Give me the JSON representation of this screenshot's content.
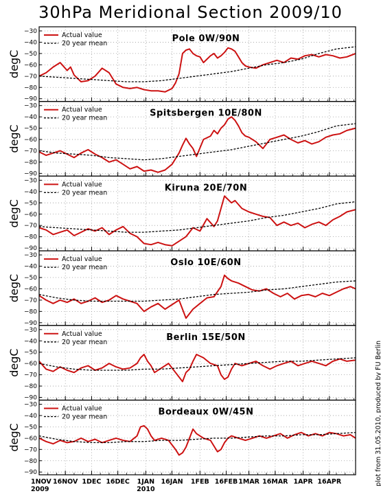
{
  "page_title": "30hPa Meridional Section 2009/10",
  "credit": "plot from 31.05.2010, produced by FU Berlin",
  "legend": {
    "actual": "Actual value",
    "mean": "20 year mean"
  },
  "colors": {
    "actual": "#cc1111",
    "mean": "#000000",
    "grid": "#999999"
  },
  "chart_data": [
    {
      "type": "line",
      "title": "Pole 0W/90N",
      "ylabel": "degC",
      "ylim": [
        -90,
        -30
      ],
      "yticks": [
        -30,
        -40,
        -50,
        -60,
        -70,
        -80,
        -90
      ],
      "x_range_days": [
        0,
        181
      ],
      "x_ticks": [
        {
          "day": 0,
          "label": "1NOV",
          "year": "2009"
        },
        {
          "day": 15,
          "label": "16NOV"
        },
        {
          "day": 30,
          "label": "1DEC"
        },
        {
          "day": 45,
          "label": "16DEC"
        },
        {
          "day": 61,
          "label": "1JAN",
          "year": "2010"
        },
        {
          "day": 76,
          "label": "16JAN"
        },
        {
          "day": 92,
          "label": "1FEB"
        },
        {
          "day": 107,
          "label": "16FEB"
        },
        {
          "day": 120,
          "label": "1MAR"
        },
        {
          "day": 135,
          "label": "16MAR"
        },
        {
          "day": 151,
          "label": "1APR"
        },
        {
          "day": 166,
          "label": "16APR"
        }
      ],
      "grid": true,
      "legend_position": "top-left",
      "series": [
        {
          "name": "Actual value",
          "style": "solid",
          "color": "#cc1111",
          "x": [
            0,
            4,
            8,
            12,
            16,
            18,
            20,
            24,
            28,
            32,
            36,
            40,
            44,
            48,
            52,
            56,
            60,
            64,
            68,
            72,
            76,
            78,
            80,
            82,
            84,
            86,
            88,
            90,
            92,
            94,
            96,
            98,
            100,
            102,
            104,
            106,
            108,
            110,
            112,
            114,
            116,
            118,
            120,
            124,
            128,
            132,
            136,
            140,
            144,
            148,
            152,
            156,
            160,
            164,
            168,
            172,
            176,
            181
          ],
          "y": [
            -70,
            -67,
            -62,
            -58,
            -65,
            -62,
            -69,
            -75,
            -74,
            -70,
            -63,
            -67,
            -77,
            -80,
            -81,
            -80,
            -82,
            -83,
            -83,
            -84,
            -81,
            -76,
            -68,
            -50,
            -47,
            -46,
            -50,
            -52,
            -53,
            -58,
            -55,
            -52,
            -50,
            -54,
            -52,
            -49,
            -45,
            -46,
            -48,
            -53,
            -58,
            -61,
            -62,
            -63,
            -60,
            -58,
            -56,
            -58,
            -54,
            -55,
            -52,
            -51,
            -53,
            -51,
            -52,
            -54,
            -53,
            -50
          ]
        },
        {
          "name": "20 year mean",
          "style": "dashed",
          "color": "#000000",
          "x": [
            0,
            10,
            20,
            30,
            40,
            50,
            60,
            70,
            80,
            90,
            100,
            110,
            120,
            130,
            140,
            150,
            160,
            170,
            181
          ],
          "y": [
            -70,
            -71,
            -72,
            -73,
            -74,
            -75,
            -75,
            -74,
            -72,
            -70,
            -68,
            -66,
            -63,
            -60,
            -58,
            -55,
            -50,
            -46,
            -44
          ]
        }
      ]
    },
    {
      "type": "line",
      "title": "Spitsbergen 10E/80N",
      "ylabel": "degC",
      "ylim": [
        -90,
        -30
      ],
      "yticks": [
        -30,
        -40,
        -50,
        -60,
        -70,
        -80,
        -90
      ],
      "grid": true,
      "legend_position": "top-left",
      "series": [
        {
          "name": "Actual value",
          "style": "solid",
          "color": "#cc1111",
          "x": [
            0,
            4,
            8,
            12,
            16,
            20,
            24,
            28,
            32,
            36,
            40,
            44,
            48,
            52,
            56,
            60,
            64,
            68,
            72,
            76,
            80,
            82,
            84,
            86,
            88,
            90,
            94,
            98,
            100,
            102,
            104,
            106,
            108,
            110,
            112,
            114,
            116,
            118,
            120,
            124,
            128,
            132,
            136,
            140,
            144,
            148,
            152,
            156,
            160,
            164,
            168,
            172,
            176,
            181
          ],
          "y": [
            -71,
            -74,
            -72,
            -70,
            -73,
            -76,
            -72,
            -69,
            -73,
            -76,
            -80,
            -78,
            -82,
            -86,
            -84,
            -88,
            -87,
            -89,
            -87,
            -82,
            -72,
            -65,
            -59,
            -64,
            -68,
            -75,
            -60,
            -57,
            -52,
            -55,
            -50,
            -47,
            -42,
            -40,
            -43,
            -48,
            -54,
            -57,
            -58,
            -62,
            -68,
            -60,
            -58,
            -56,
            -60,
            -63,
            -61,
            -64,
            -62,
            -58,
            -56,
            -55,
            -52,
            -50
          ]
        },
        {
          "name": "20 year mean",
          "style": "dashed",
          "color": "#000000",
          "x": [
            0,
            10,
            20,
            30,
            40,
            50,
            60,
            70,
            80,
            90,
            100,
            110,
            120,
            130,
            140,
            150,
            160,
            170,
            181
          ],
          "y": [
            -70,
            -72,
            -73,
            -74,
            -76,
            -77,
            -78,
            -77,
            -75,
            -73,
            -71,
            -69,
            -66,
            -63,
            -60,
            -57,
            -53,
            -48,
            -46
          ]
        }
      ]
    },
    {
      "type": "line",
      "title": "Kiruna 20E/70N",
      "ylabel": "degC",
      "ylim": [
        -90,
        -30
      ],
      "yticks": [
        -30,
        -40,
        -50,
        -60,
        -70,
        -80,
        -90
      ],
      "grid": true,
      "legend_position": "top-left",
      "series": [
        {
          "name": "Actual value",
          "style": "solid",
          "color": "#cc1111",
          "x": [
            0,
            4,
            8,
            12,
            16,
            20,
            24,
            28,
            32,
            36,
            40,
            44,
            48,
            52,
            56,
            60,
            64,
            68,
            72,
            76,
            80,
            84,
            88,
            92,
            96,
            100,
            102,
            104,
            106,
            108,
            110,
            112,
            116,
            120,
            124,
            128,
            132,
            136,
            140,
            144,
            148,
            152,
            156,
            160,
            164,
            168,
            172,
            176,
            181
          ],
          "y": [
            -72,
            -74,
            -78,
            -76,
            -74,
            -79,
            -76,
            -73,
            -75,
            -72,
            -78,
            -74,
            -71,
            -77,
            -80,
            -86,
            -87,
            -85,
            -87,
            -88,
            -84,
            -80,
            -72,
            -75,
            -64,
            -71,
            -66,
            -55,
            -44,
            -47,
            -50,
            -48,
            -55,
            -58,
            -60,
            -62,
            -63,
            -70,
            -67,
            -70,
            -68,
            -72,
            -69,
            -67,
            -70,
            -65,
            -62,
            -58,
            -56
          ]
        },
        {
          "name": "20 year mean",
          "style": "dashed",
          "color": "#000000",
          "x": [
            0,
            10,
            20,
            30,
            40,
            50,
            60,
            70,
            80,
            90,
            100,
            110,
            120,
            130,
            140,
            150,
            160,
            170,
            181
          ],
          "y": [
            -71,
            -72,
            -73,
            -74,
            -75,
            -76,
            -76,
            -75,
            -74,
            -72,
            -70,
            -68,
            -66,
            -63,
            -61,
            -58,
            -55,
            -51,
            -49
          ]
        }
      ]
    },
    {
      "type": "line",
      "title": "Oslo 10E/60N",
      "ylabel": "degC",
      "ylim": [
        -90,
        -30
      ],
      "yticks": [
        -30,
        -40,
        -50,
        -60,
        -70,
        -80,
        -90
      ],
      "grid": true,
      "legend_position": "top-left",
      "series": [
        {
          "name": "Actual value",
          "style": "solid",
          "color": "#cc1111",
          "x": [
            0,
            4,
            8,
            12,
            16,
            20,
            24,
            28,
            32,
            36,
            40,
            44,
            48,
            52,
            56,
            60,
            64,
            68,
            72,
            76,
            80,
            84,
            88,
            92,
            96,
            100,
            104,
            106,
            108,
            110,
            114,
            118,
            122,
            126,
            130,
            134,
            138,
            142,
            146,
            150,
            154,
            158,
            162,
            166,
            170,
            174,
            178,
            181
          ],
          "y": [
            -66,
            -70,
            -73,
            -70,
            -72,
            -69,
            -73,
            -71,
            -68,
            -72,
            -70,
            -66,
            -69,
            -71,
            -73,
            -80,
            -76,
            -73,
            -78,
            -74,
            -70,
            -86,
            -78,
            -73,
            -68,
            -67,
            -58,
            -48,
            -51,
            -53,
            -55,
            -58,
            -61,
            -62,
            -60,
            -64,
            -67,
            -64,
            -69,
            -66,
            -65,
            -67,
            -64,
            -66,
            -63,
            -60,
            -58,
            -60
          ]
        },
        {
          "name": "20 year mean",
          "style": "dashed",
          "color": "#000000",
          "x": [
            0,
            10,
            20,
            30,
            40,
            50,
            60,
            70,
            80,
            90,
            100,
            110,
            120,
            130,
            140,
            150,
            160,
            170,
            181
          ],
          "y": [
            -65,
            -68,
            -70,
            -71,
            -71,
            -71,
            -71,
            -70,
            -69,
            -67,
            -65,
            -64,
            -63,
            -61,
            -60,
            -58,
            -56,
            -54,
            -53
          ]
        }
      ]
    },
    {
      "type": "line",
      "title": "Berlin 15E/50N",
      "ylabel": "degC",
      "ylim": [
        -90,
        -30
      ],
      "yticks": [
        -30,
        -40,
        -50,
        -60,
        -70,
        -80,
        -90
      ],
      "grid": true,
      "legend_position": "top-left",
      "series": [
        {
          "name": "Actual value",
          "style": "solid",
          "color": "#cc1111",
          "x": [
            0,
            4,
            8,
            12,
            16,
            20,
            24,
            28,
            32,
            36,
            40,
            44,
            48,
            52,
            56,
            58,
            60,
            62,
            64,
            66,
            70,
            74,
            78,
            82,
            84,
            86,
            88,
            90,
            94,
            98,
            102,
            104,
            106,
            108,
            110,
            112,
            116,
            120,
            124,
            128,
            132,
            136,
            140,
            144,
            148,
            152,
            156,
            160,
            164,
            168,
            172,
            176,
            181
          ],
          "y": [
            -58,
            -65,
            -67,
            -63,
            -66,
            -68,
            -64,
            -62,
            -66,
            -64,
            -60,
            -63,
            -65,
            -64,
            -60,
            -55,
            -52,
            -58,
            -62,
            -68,
            -64,
            -60,
            -68,
            -76,
            -68,
            -65,
            -58,
            -52,
            -55,
            -60,
            -62,
            -70,
            -74,
            -72,
            -65,
            -60,
            -62,
            -60,
            -58,
            -62,
            -65,
            -62,
            -60,
            -58,
            -62,
            -60,
            -58,
            -60,
            -62,
            -58,
            -56,
            -58,
            -57
          ]
        },
        {
          "name": "20 year mean",
          "style": "dashed",
          "color": "#000000",
          "x": [
            0,
            10,
            20,
            30,
            40,
            50,
            60,
            70,
            80,
            90,
            100,
            110,
            120,
            130,
            140,
            150,
            160,
            170,
            181
          ],
          "y": [
            -60,
            -63,
            -65,
            -66,
            -66,
            -66,
            -65,
            -65,
            -64,
            -63,
            -62,
            -61,
            -60,
            -59,
            -58,
            -58,
            -57,
            -56,
            -55
          ]
        }
      ]
    },
    {
      "type": "line",
      "title": "Bordeaux 0W/45N",
      "ylabel": "degC",
      "ylim": [
        -90,
        -30
      ],
      "yticks": [
        -30,
        -40,
        -50,
        -60,
        -70,
        -80,
        -90
      ],
      "grid": true,
      "legend_position": "top-left",
      "series": [
        {
          "name": "Actual value",
          "style": "solid",
          "color": "#cc1111",
          "x": [
            0,
            4,
            8,
            12,
            16,
            20,
            24,
            28,
            32,
            36,
            40,
            44,
            48,
            52,
            56,
            58,
            60,
            62,
            64,
            66,
            70,
            74,
            78,
            80,
            82,
            84,
            86,
            88,
            90,
            94,
            98,
            102,
            104,
            106,
            108,
            110,
            114,
            118,
            122,
            126,
            130,
            134,
            138,
            142,
            146,
            150,
            154,
            158,
            162,
            166,
            170,
            174,
            178,
            181
          ],
          "y": [
            -60,
            -63,
            -65,
            -62,
            -64,
            -63,
            -60,
            -63,
            -61,
            -64,
            -62,
            -60,
            -62,
            -63,
            -58,
            -50,
            -49,
            -52,
            -58,
            -62,
            -60,
            -62,
            -70,
            -75,
            -73,
            -68,
            -60,
            -52,
            -56,
            -60,
            -62,
            -72,
            -70,
            -64,
            -60,
            -58,
            -60,
            -62,
            -60,
            -58,
            -60,
            -58,
            -56,
            -60,
            -57,
            -55,
            -58,
            -56,
            -58,
            -55,
            -56,
            -58,
            -57,
            -60
          ]
        },
        {
          "name": "20 year mean",
          "style": "dashed",
          "color": "#000000",
          "x": [
            0,
            10,
            20,
            30,
            40,
            50,
            60,
            70,
            80,
            90,
            100,
            110,
            120,
            130,
            140,
            150,
            160,
            170,
            181
          ],
          "y": [
            -58,
            -61,
            -63,
            -64,
            -64,
            -63,
            -63,
            -62,
            -62,
            -61,
            -60,
            -60,
            -59,
            -58,
            -58,
            -57,
            -57,
            -56,
            -55
          ]
        }
      ]
    }
  ]
}
